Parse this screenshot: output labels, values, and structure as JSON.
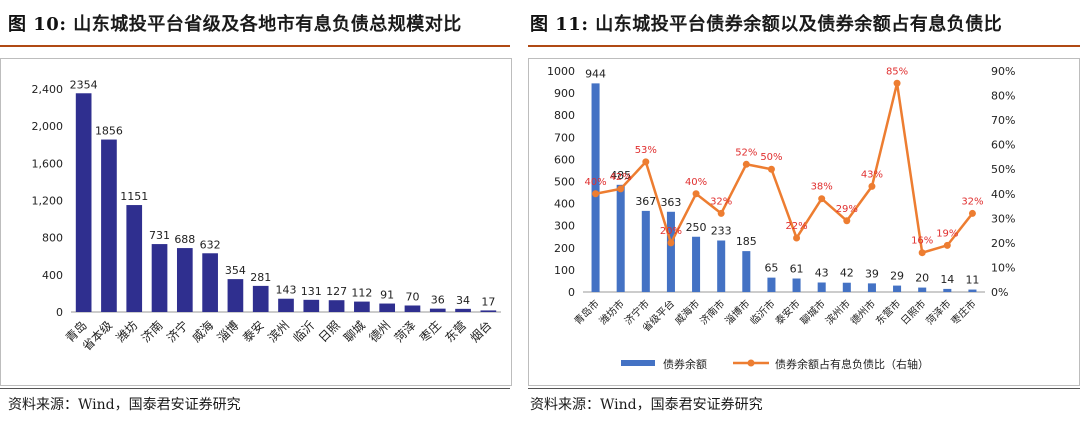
{
  "left": {
    "title_num": "图 10:",
    "title_text": "山东城投平台省级及各地市有息负债总规模对比",
    "source": "资料来源：Wind，国泰君安证券研究"
  },
  "right": {
    "title_num": "图 11:",
    "title_text": "山东城投平台债券余额以及债券余额占有息负债比",
    "source": "资料来源：Wind，国泰君安证券研究"
  },
  "colors": {
    "bar_left": "#2f2f8f",
    "bar_right": "#4472c4",
    "line": "#ed7d31",
    "pct_label": "#e03030"
  },
  "chart_data": [
    {
      "type": "bar",
      "title": "",
      "categories": [
        "青岛",
        "省本级",
        "潍坊",
        "济南",
        "济宁",
        "威海",
        "淄博",
        "泰安",
        "滨州",
        "临沂",
        "日照",
        "聊城",
        "德州",
        "菏泽",
        "枣庄",
        "东营",
        "烟台"
      ],
      "values": [
        2354,
        1856,
        1151,
        731,
        688,
        632,
        354,
        281,
        143,
        131,
        127,
        112,
        91,
        70,
        36,
        34,
        17
      ],
      "ylim": [
        0,
        2400
      ],
      "yticks": [
        "0",
        "400",
        "800",
        "1,200",
        "1,600",
        "2,000",
        "2,400"
      ],
      "xlabel": "",
      "ylabel": "",
      "grid": false,
      "legend": "none"
    },
    {
      "type": "bar+line",
      "title": "",
      "categories": [
        "青岛市",
        "潍坊市",
        "济宁市",
        "省级平台",
        "威海市",
        "济南市",
        "淄博市",
        "临沂市",
        "泰安市",
        "聊城市",
        "滨州市",
        "德州市",
        "东营市",
        "日照市",
        "菏泽市",
        "枣庄市"
      ],
      "series": [
        {
          "name": "债券余额",
          "type": "bar",
          "axis": "left",
          "values": [
            944,
            485,
            367,
            363,
            250,
            233,
            185,
            65,
            61,
            43,
            42,
            39,
            29,
            20,
            14,
            11
          ]
        },
        {
          "name": "债券余额占有息负债比（右轴）",
          "type": "line",
          "axis": "right",
          "values": [
            40,
            42,
            53,
            20,
            40,
            32,
            52,
            50,
            22,
            38,
            29,
            43,
            85,
            16,
            19,
            32
          ],
          "labels": [
            "40%",
            "42%",
            "53%",
            "20%",
            "40%",
            "32%",
            "52%",
            "50%",
            "22%",
            "38%",
            "29%",
            "43%",
            "85%",
            "16%",
            "19%",
            "32%"
          ]
        }
      ],
      "ylim": [
        0,
        1000
      ],
      "yticks": [
        "0",
        "100",
        "200",
        "300",
        "400",
        "500",
        "600",
        "700",
        "800",
        "900",
        "1000"
      ],
      "y2lim": [
        0,
        90
      ],
      "y2ticks": [
        "0%",
        "10%",
        "20%",
        "30%",
        "40%",
        "50%",
        "60%",
        "70%",
        "80%",
        "90%"
      ],
      "legend": "bottom",
      "grid": false
    }
  ]
}
